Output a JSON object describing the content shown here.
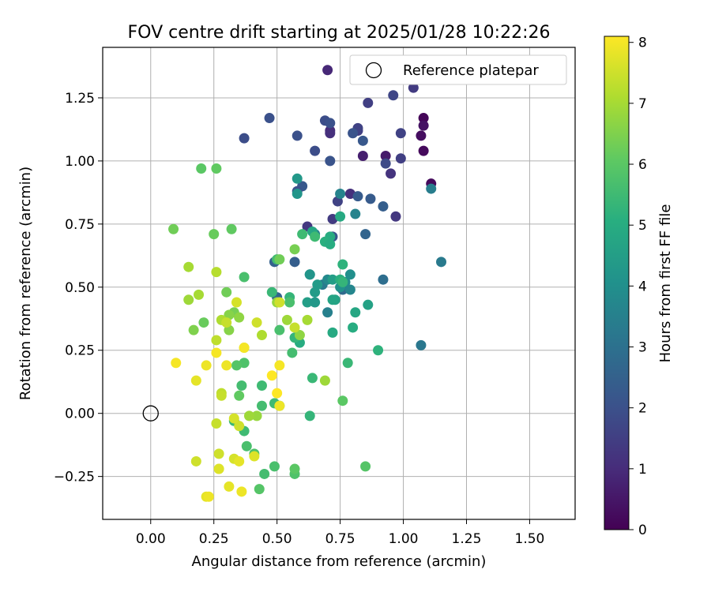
{
  "chart_data": {
    "type": "scatter",
    "title": "FOV centre drift starting at 2025/01/28 10:22:26",
    "xlabel": "Angular distance from reference (arcmin)",
    "ylabel": "Rotation from reference (arcmin)",
    "xlim": [
      -0.19,
      1.68
    ],
    "ylim": [
      -0.42,
      1.45
    ],
    "xticks": [
      0.0,
      0.25,
      0.5,
      0.75,
      1.0,
      1.25,
      1.5
    ],
    "xtick_labels": [
      "0.00",
      "0.25",
      "0.50",
      "0.75",
      "1.00",
      "1.25",
      "1.50"
    ],
    "yticks": [
      -0.25,
      0.0,
      0.25,
      0.5,
      0.75,
      1.0,
      1.25
    ],
    "ytick_labels": [
      "−0.25",
      "0.00",
      "0.25",
      "0.50",
      "0.75",
      "1.00",
      "1.25"
    ],
    "grid": true,
    "legend": {
      "placement": "upper-right",
      "entries": [
        "Reference platepar"
      ]
    },
    "reference_point": {
      "x": 0.0,
      "y": 0.0,
      "label": "Reference platepar"
    },
    "colorbar": {
      "label": "Hours from first FF file",
      "colormap": "viridis",
      "range": [
        0,
        8.1
      ],
      "ticks": [
        0,
        1,
        2,
        3,
        4,
        5,
        6,
        7,
        8
      ],
      "tick_labels": [
        "0",
        "1",
        "2",
        "3",
        "4",
        "5",
        "6",
        "7",
        "8"
      ]
    },
    "points": [
      {
        "x": 1.08,
        "y": 1.17,
        "h": 0.1
      },
      {
        "x": 1.11,
        "y": 0.91,
        "h": 0.2
      },
      {
        "x": 1.07,
        "y": 1.1,
        "h": 0.3
      },
      {
        "x": 1.08,
        "y": 1.04,
        "h": 0.2
      },
      {
        "x": 1.08,
        "y": 1.14,
        "h": 0.4
      },
      {
        "x": 0.93,
        "y": 1.02,
        "h": 0.6
      },
      {
        "x": 0.84,
        "y": 1.02,
        "h": 0.7
      },
      {
        "x": 0.7,
        "y": 1.36,
        "h": 0.9
      },
      {
        "x": 0.71,
        "y": 1.12,
        "h": 1.0
      },
      {
        "x": 0.71,
        "y": 1.11,
        "h": 1.1
      },
      {
        "x": 0.95,
        "y": 0.95,
        "h": 1.2
      },
      {
        "x": 0.97,
        "y": 0.78,
        "h": 1.3
      },
      {
        "x": 0.79,
        "y": 0.87,
        "h": 1.1
      },
      {
        "x": 1.04,
        "y": 1.29,
        "h": 1.4
      },
      {
        "x": 0.82,
        "y": 1.12,
        "h": 1.5
      },
      {
        "x": 0.82,
        "y": 1.13,
        "h": 1.6
      },
      {
        "x": 0.86,
        "y": 1.23,
        "h": 1.5
      },
      {
        "x": 0.96,
        "y": 1.26,
        "h": 1.7
      },
      {
        "x": 0.99,
        "y": 1.11,
        "h": 1.6
      },
      {
        "x": 0.99,
        "y": 1.01,
        "h": 1.5
      },
      {
        "x": 0.93,
        "y": 0.99,
        "h": 1.8
      },
      {
        "x": 0.74,
        "y": 0.84,
        "h": 1.6
      },
      {
        "x": 0.72,
        "y": 0.77,
        "h": 1.4
      },
      {
        "x": 0.62,
        "y": 0.74,
        "h": 1.3
      },
      {
        "x": 0.65,
        "y": 1.04,
        "h": 1.9
      },
      {
        "x": 0.58,
        "y": 1.1,
        "h": 2.0
      },
      {
        "x": 0.69,
        "y": 1.16,
        "h": 1.9
      },
      {
        "x": 0.71,
        "y": 1.15,
        "h": 2.0
      },
      {
        "x": 0.47,
        "y": 1.17,
        "h": 2.0
      },
      {
        "x": 0.37,
        "y": 1.09,
        "h": 1.9
      },
      {
        "x": 0.71,
        "y": 1.0,
        "h": 2.1
      },
      {
        "x": 0.6,
        "y": 0.9,
        "h": 2.2
      },
      {
        "x": 0.58,
        "y": 0.88,
        "h": 2.0
      },
      {
        "x": 0.8,
        "y": 1.11,
        "h": 2.1
      },
      {
        "x": 0.84,
        "y": 1.08,
        "h": 2.2
      },
      {
        "x": 0.87,
        "y": 0.85,
        "h": 2.3
      },
      {
        "x": 0.82,
        "y": 0.86,
        "h": 2.3
      },
      {
        "x": 0.92,
        "y": 0.82,
        "h": 2.4
      },
      {
        "x": 0.85,
        "y": 0.71,
        "h": 2.6
      },
      {
        "x": 0.72,
        "y": 0.7,
        "h": 2.2
      },
      {
        "x": 0.57,
        "y": 0.6,
        "h": 2.4
      },
      {
        "x": 0.49,
        "y": 0.6,
        "h": 2.5
      },
      {
        "x": 0.5,
        "y": 0.46,
        "h": 2.6
      },
      {
        "x": 0.92,
        "y": 0.53,
        "h": 2.9
      },
      {
        "x": 0.76,
        "y": 0.49,
        "h": 2.8
      },
      {
        "x": 1.07,
        "y": 0.27,
        "h": 3.2
      },
      {
        "x": 1.15,
        "y": 0.6,
        "h": 3.3
      },
      {
        "x": 1.11,
        "y": 0.89,
        "h": 3.4
      },
      {
        "x": 0.75,
        "y": 0.87,
        "h": 3.6
      },
      {
        "x": 0.81,
        "y": 0.79,
        "h": 3.6
      },
      {
        "x": 0.65,
        "y": 0.71,
        "h": 3.5
      },
      {
        "x": 0.63,
        "y": 0.55,
        "h": 3.7
      },
      {
        "x": 0.68,
        "y": 0.51,
        "h": 3.3
      },
      {
        "x": 0.7,
        "y": 0.53,
        "h": 3.8
      },
      {
        "x": 0.77,
        "y": 0.52,
        "h": 3.9
      },
      {
        "x": 0.79,
        "y": 0.49,
        "h": 3.7
      },
      {
        "x": 0.79,
        "y": 0.55,
        "h": 4.0
      },
      {
        "x": 0.7,
        "y": 0.4,
        "h": 3.5
      },
      {
        "x": 0.75,
        "y": 0.5,
        "h": 4.1
      },
      {
        "x": 0.58,
        "y": 0.93,
        "h": 4.3
      },
      {
        "x": 0.58,
        "y": 0.87,
        "h": 4.2
      },
      {
        "x": 0.63,
        "y": 0.55,
        "h": 4.2
      },
      {
        "x": 0.66,
        "y": 0.51,
        "h": 4.4
      },
      {
        "x": 0.72,
        "y": 0.53,
        "h": 4.5
      },
      {
        "x": 0.73,
        "y": 0.45,
        "h": 4.6
      },
      {
        "x": 0.86,
        "y": 0.43,
        "h": 4.6
      },
      {
        "x": 0.81,
        "y": 0.4,
        "h": 4.8
      },
      {
        "x": 0.72,
        "y": 0.45,
        "h": 4.7
      },
      {
        "x": 0.62,
        "y": 0.44,
        "h": 4.5
      },
      {
        "x": 0.65,
        "y": 0.48,
        "h": 4.4
      },
      {
        "x": 0.65,
        "y": 0.44,
        "h": 4.3
      },
      {
        "x": 0.75,
        "y": 0.78,
        "h": 4.9
      },
      {
        "x": 0.71,
        "y": 0.7,
        "h": 5.0
      },
      {
        "x": 0.69,
        "y": 0.68,
        "h": 5.1
      },
      {
        "x": 0.71,
        "y": 0.67,
        "h": 5.0
      },
      {
        "x": 0.64,
        "y": 0.72,
        "h": 4.8
      },
      {
        "x": 0.75,
        "y": 0.53,
        "h": 5.1
      },
      {
        "x": 0.76,
        "y": 0.59,
        "h": 5.2
      },
      {
        "x": 0.76,
        "y": 0.52,
        "h": 5.3
      },
      {
        "x": 0.8,
        "y": 0.34,
        "h": 5.0
      },
      {
        "x": 0.72,
        "y": 0.32,
        "h": 4.9
      },
      {
        "x": 0.9,
        "y": 0.25,
        "h": 5.2
      },
      {
        "x": 0.59,
        "y": 0.28,
        "h": 5.0
      },
      {
        "x": 0.57,
        "y": 0.3,
        "h": 5.3
      },
      {
        "x": 0.55,
        "y": 0.46,
        "h": 5.3
      },
      {
        "x": 0.48,
        "y": 0.48,
        "h": 5.4
      },
      {
        "x": 0.78,
        "y": 0.2,
        "h": 5.4
      },
      {
        "x": 0.64,
        "y": 0.14,
        "h": 5.4
      },
      {
        "x": 0.63,
        "y": -0.01,
        "h": 5.3
      },
      {
        "x": 0.6,
        "y": 0.71,
        "h": 5.5
      },
      {
        "x": 0.65,
        "y": 0.7,
        "h": 5.5
      },
      {
        "x": 0.5,
        "y": 0.61,
        "h": 5.6
      },
      {
        "x": 0.55,
        "y": 0.44,
        "h": 5.7
      },
      {
        "x": 0.51,
        "y": 0.33,
        "h": 5.7
      },
      {
        "x": 0.56,
        "y": 0.24,
        "h": 5.6
      },
      {
        "x": 0.44,
        "y": 0.11,
        "h": 5.5
      },
      {
        "x": 0.49,
        "y": 0.04,
        "h": 5.5
      },
      {
        "x": 0.44,
        "y": 0.03,
        "h": 5.6
      },
      {
        "x": 0.51,
        "y": 0.03,
        "h": 5.8
      },
      {
        "x": 0.37,
        "y": 0.54,
        "h": 5.7
      },
      {
        "x": 0.37,
        "y": 0.2,
        "h": 5.8
      },
      {
        "x": 0.34,
        "y": 0.19,
        "h": 5.9
      },
      {
        "x": 0.36,
        "y": 0.11,
        "h": 5.6
      },
      {
        "x": 0.33,
        "y": -0.03,
        "h": 5.4
      },
      {
        "x": 0.37,
        "y": -0.07,
        "h": 5.5
      },
      {
        "x": 0.38,
        "y": -0.13,
        "h": 5.7
      },
      {
        "x": 0.41,
        "y": -0.16,
        "h": 5.8
      },
      {
        "x": 0.45,
        "y": -0.24,
        "h": 5.6
      },
      {
        "x": 0.49,
        "y": -0.21,
        "h": 5.7
      },
      {
        "x": 0.57,
        "y": -0.24,
        "h": 5.8
      },
      {
        "x": 0.57,
        "y": -0.22,
        "h": 6.0
      },
      {
        "x": 0.43,
        "y": -0.3,
        "h": 5.9
      },
      {
        "x": 0.85,
        "y": -0.21,
        "h": 5.9
      },
      {
        "x": 0.76,
        "y": 0.05,
        "h": 6.0
      },
      {
        "x": 0.35,
        "y": 0.07,
        "h": 6.1
      },
      {
        "x": 0.2,
        "y": 0.97,
        "h": 6.0
      },
      {
        "x": 0.26,
        "y": 0.97,
        "h": 6.1
      },
      {
        "x": 0.32,
        "y": 0.73,
        "h": 6.1
      },
      {
        "x": 0.25,
        "y": 0.71,
        "h": 6.2
      },
      {
        "x": 0.09,
        "y": 0.73,
        "h": 6.3
      },
      {
        "x": 0.51,
        "y": 0.61,
        "h": 6.3
      },
      {
        "x": 0.57,
        "y": 0.65,
        "h": 6.4
      },
      {
        "x": 0.21,
        "y": 0.36,
        "h": 6.2
      },
      {
        "x": 0.3,
        "y": 0.48,
        "h": 6.3
      },
      {
        "x": 0.33,
        "y": 0.4,
        "h": 6.4
      },
      {
        "x": 0.31,
        "y": 0.39,
        "h": 6.6
      },
      {
        "x": 0.35,
        "y": 0.38,
        "h": 6.7
      },
      {
        "x": 0.17,
        "y": 0.33,
        "h": 6.5
      },
      {
        "x": 0.31,
        "y": 0.33,
        "h": 6.6
      },
      {
        "x": 0.5,
        "y": 0.44,
        "h": 6.8
      },
      {
        "x": 0.54,
        "y": 0.37,
        "h": 6.9
      },
      {
        "x": 0.59,
        "y": 0.31,
        "h": 6.7
      },
      {
        "x": 0.62,
        "y": 0.37,
        "h": 7.0
      },
      {
        "x": 0.69,
        "y": 0.13,
        "h": 6.9
      },
      {
        "x": 0.42,
        "y": -0.01,
        "h": 6.8
      },
      {
        "x": 0.39,
        "y": -0.01,
        "h": 6.9
      },
      {
        "x": 0.15,
        "y": 0.58,
        "h": 7.0
      },
      {
        "x": 0.15,
        "y": 0.45,
        "h": 6.9
      },
      {
        "x": 0.19,
        "y": 0.47,
        "h": 7.0
      },
      {
        "x": 0.26,
        "y": 0.56,
        "h": 7.2
      },
      {
        "x": 0.28,
        "y": 0.37,
        "h": 7.1
      },
      {
        "x": 0.37,
        "y": 0.26,
        "h": 7.2
      },
      {
        "x": 0.26,
        "y": 0.29,
        "h": 7.3
      },
      {
        "x": 0.44,
        "y": 0.31,
        "h": 7.1
      },
      {
        "x": 0.57,
        "y": 0.34,
        "h": 7.4
      },
      {
        "x": 0.42,
        "y": 0.36,
        "h": 7.5
      },
      {
        "x": 0.34,
        "y": 0.44,
        "h": 7.6
      },
      {
        "x": 0.51,
        "y": 0.44,
        "h": 7.5
      },
      {
        "x": 0.3,
        "y": 0.36,
        "h": 7.4
      },
      {
        "x": 0.28,
        "y": 0.08,
        "h": 7.3
      },
      {
        "x": 0.28,
        "y": 0.07,
        "h": 7.4
      },
      {
        "x": 0.35,
        "y": -0.05,
        "h": 7.5
      },
      {
        "x": 0.33,
        "y": -0.02,
        "h": 7.6
      },
      {
        "x": 0.26,
        "y": -0.04,
        "h": 7.4
      },
      {
        "x": 0.27,
        "y": -0.16,
        "h": 7.5
      },
      {
        "x": 0.27,
        "y": -0.22,
        "h": 7.6
      },
      {
        "x": 0.27,
        "y": -0.22,
        "h": 7.7
      },
      {
        "x": 0.33,
        "y": -0.18,
        "h": 7.6
      },
      {
        "x": 0.35,
        "y": -0.19,
        "h": 7.8
      },
      {
        "x": 0.41,
        "y": -0.17,
        "h": 7.7
      },
      {
        "x": 0.18,
        "y": -0.19,
        "h": 7.5
      },
      {
        "x": 0.31,
        "y": -0.29,
        "h": 7.8
      },
      {
        "x": 0.36,
        "y": -0.31,
        "h": 7.9
      },
      {
        "x": 0.22,
        "y": -0.33,
        "h": 7.8
      },
      {
        "x": 0.23,
        "y": -0.33,
        "h": 7.9
      },
      {
        "x": 0.18,
        "y": 0.13,
        "h": 7.8
      },
      {
        "x": 0.22,
        "y": 0.19,
        "h": 7.9
      },
      {
        "x": 0.1,
        "y": 0.2,
        "h": 8.0
      },
      {
        "x": 0.26,
        "y": 0.24,
        "h": 8.0
      },
      {
        "x": 0.3,
        "y": 0.19,
        "h": 7.9
      },
      {
        "x": 0.37,
        "y": 0.26,
        "h": 8.0
      },
      {
        "x": 0.48,
        "y": 0.15,
        "h": 8.1
      },
      {
        "x": 0.51,
        "y": 0.19,
        "h": 8.0
      },
      {
        "x": 0.5,
        "y": 0.08,
        "h": 8.1
      },
      {
        "x": 0.51,
        "y": 0.03,
        "h": 7.9
      }
    ]
  }
}
